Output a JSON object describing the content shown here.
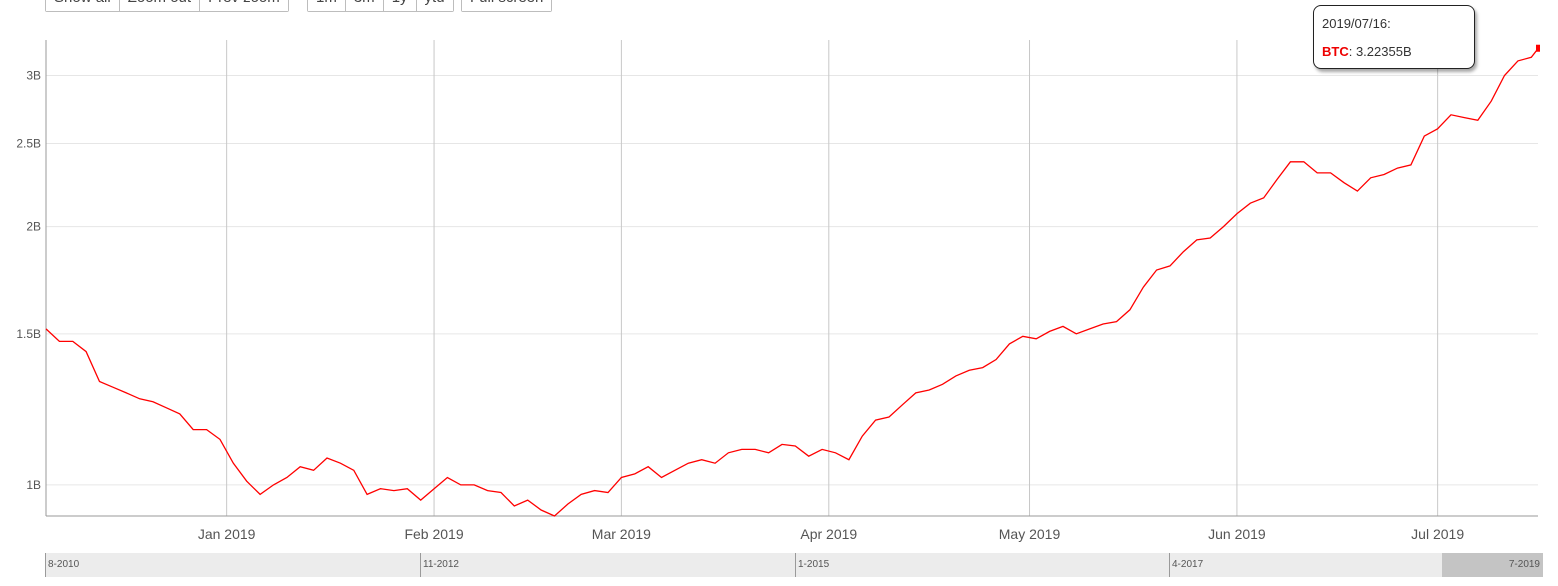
{
  "range_buttons": {
    "zoom": [
      "Show all",
      "Zoom out",
      "Prev zoom"
    ],
    "periods": [
      "1m",
      "3m",
      "1y",
      "ytd"
    ],
    "fullscreen": "Full screen"
  },
  "tooltip": {
    "date": "2019/07/16:",
    "series": "BTC",
    "separator": ": ",
    "value": "3.22355B"
  },
  "navigator": {
    "labels": [
      "8-2010",
      "11-2012",
      "1-2015",
      "4-2017"
    ],
    "end_label": "7-2019"
  },
  "colors": {
    "series": "#ff0000",
    "grid": "#e6e6e6",
    "vgrid": "#c8c8c8",
    "axis": "#999999"
  },
  "chart_data": {
    "type": "line",
    "title": "",
    "xlabel": "",
    "ylabel": "",
    "y_scale": "log",
    "ylim": [
      0.92,
      3.3
    ],
    "x_range": [
      "2018-12-05",
      "2019-07-16"
    ],
    "yticks": [
      {
        "value": 1.0,
        "label": "1B"
      },
      {
        "value": 1.5,
        "label": "1.5B"
      },
      {
        "value": 2.0,
        "label": "2B"
      },
      {
        "value": 2.5,
        "label": "2.5B"
      },
      {
        "value": 3.0,
        "label": "3B"
      }
    ],
    "xticks": [
      {
        "date": "2019-01-01",
        "label": "Jan 2019"
      },
      {
        "date": "2019-02-01",
        "label": "Feb 2019"
      },
      {
        "date": "2019-03-01",
        "label": "Mar 2019"
      },
      {
        "date": "2019-04-01",
        "label": "Apr 2019"
      },
      {
        "date": "2019-05-01",
        "label": "May 2019"
      },
      {
        "date": "2019-06-01",
        "label": "Jun 2019"
      },
      {
        "date": "2019-07-01",
        "label": "Jul 2019"
      }
    ],
    "series": [
      {
        "name": "BTC",
        "points": [
          [
            "2018-12-05",
            1.52
          ],
          [
            "2018-12-07",
            1.47
          ],
          [
            "2018-12-09",
            1.47
          ],
          [
            "2018-12-11",
            1.43
          ],
          [
            "2018-12-13",
            1.32
          ],
          [
            "2018-12-15",
            1.3
          ],
          [
            "2018-12-17",
            1.28
          ],
          [
            "2018-12-19",
            1.26
          ],
          [
            "2018-12-21",
            1.25
          ],
          [
            "2018-12-23",
            1.23
          ],
          [
            "2018-12-25",
            1.21
          ],
          [
            "2018-12-27",
            1.16
          ],
          [
            "2018-12-29",
            1.16
          ],
          [
            "2018-12-31",
            1.13
          ],
          [
            "2019-01-02",
            1.06
          ],
          [
            "2019-01-04",
            1.01
          ],
          [
            "2019-01-06",
            0.975
          ],
          [
            "2019-01-08",
            1.0
          ],
          [
            "2019-01-10",
            1.02
          ],
          [
            "2019-01-12",
            1.05
          ],
          [
            "2019-01-14",
            1.04
          ],
          [
            "2019-01-16",
            1.075
          ],
          [
            "2019-01-18",
            1.06
          ],
          [
            "2019-01-20",
            1.04
          ],
          [
            "2019-01-22",
            0.975
          ],
          [
            "2019-01-24",
            0.99
          ],
          [
            "2019-01-26",
            0.985
          ],
          [
            "2019-01-28",
            0.99
          ],
          [
            "2019-01-30",
            0.96
          ],
          [
            "2019-02-01",
            0.99
          ],
          [
            "2019-02-03",
            1.02
          ],
          [
            "2019-02-05",
            1.0
          ],
          [
            "2019-02-07",
            1.0
          ],
          [
            "2019-02-09",
            0.985
          ],
          [
            "2019-02-11",
            0.98
          ],
          [
            "2019-02-13",
            0.945
          ],
          [
            "2019-02-15",
            0.96
          ],
          [
            "2019-02-17",
            0.935
          ],
          [
            "2019-02-19",
            0.92
          ],
          [
            "2019-02-21",
            0.95
          ],
          [
            "2019-02-23",
            0.975
          ],
          [
            "2019-02-25",
            0.985
          ],
          [
            "2019-02-27",
            0.98
          ],
          [
            "2019-03-01",
            1.02
          ],
          [
            "2019-03-03",
            1.03
          ],
          [
            "2019-03-05",
            1.05
          ],
          [
            "2019-03-07",
            1.02
          ],
          [
            "2019-03-09",
            1.04
          ],
          [
            "2019-03-11",
            1.06
          ],
          [
            "2019-03-13",
            1.07
          ],
          [
            "2019-03-15",
            1.06
          ],
          [
            "2019-03-17",
            1.09
          ],
          [
            "2019-03-19",
            1.1
          ],
          [
            "2019-03-21",
            1.1
          ],
          [
            "2019-03-23",
            1.09
          ],
          [
            "2019-03-25",
            1.115
          ],
          [
            "2019-03-27",
            1.11
          ],
          [
            "2019-03-29",
            1.08
          ],
          [
            "2019-03-31",
            1.1
          ],
          [
            "2019-04-02",
            1.09
          ],
          [
            "2019-04-04",
            1.07
          ],
          [
            "2019-04-06",
            1.14
          ],
          [
            "2019-04-08",
            1.19
          ],
          [
            "2019-04-10",
            1.2
          ],
          [
            "2019-04-12",
            1.24
          ],
          [
            "2019-04-14",
            1.28
          ],
          [
            "2019-04-16",
            1.29
          ],
          [
            "2019-04-18",
            1.31
          ],
          [
            "2019-04-20",
            1.34
          ],
          [
            "2019-04-22",
            1.36
          ],
          [
            "2019-04-24",
            1.37
          ],
          [
            "2019-04-26",
            1.4
          ],
          [
            "2019-04-28",
            1.46
          ],
          [
            "2019-04-30",
            1.49
          ],
          [
            "2019-05-02",
            1.48
          ],
          [
            "2019-05-04",
            1.51
          ],
          [
            "2019-05-06",
            1.53
          ],
          [
            "2019-05-08",
            1.5
          ],
          [
            "2019-05-10",
            1.52
          ],
          [
            "2019-05-12",
            1.54
          ],
          [
            "2019-05-14",
            1.55
          ],
          [
            "2019-05-16",
            1.6
          ],
          [
            "2019-05-18",
            1.7
          ],
          [
            "2019-05-20",
            1.78
          ],
          [
            "2019-05-22",
            1.8
          ],
          [
            "2019-05-24",
            1.87
          ],
          [
            "2019-05-26",
            1.93
          ],
          [
            "2019-05-28",
            1.94
          ],
          [
            "2019-05-30",
            2.0
          ],
          [
            "2019-06-01",
            2.07
          ],
          [
            "2019-06-03",
            2.13
          ],
          [
            "2019-06-05",
            2.16
          ],
          [
            "2019-06-07",
            2.27
          ],
          [
            "2019-06-09",
            2.38
          ],
          [
            "2019-06-11",
            2.38
          ],
          [
            "2019-06-13",
            2.31
          ],
          [
            "2019-06-15",
            2.31
          ],
          [
            "2019-06-17",
            2.25
          ],
          [
            "2019-06-19",
            2.2
          ],
          [
            "2019-06-21",
            2.28
          ],
          [
            "2019-06-23",
            2.3
          ],
          [
            "2019-06-25",
            2.34
          ],
          [
            "2019-06-27",
            2.36
          ],
          [
            "2019-06-29",
            2.55
          ],
          [
            "2019-07-01",
            2.6
          ],
          [
            "2019-07-03",
            2.7
          ],
          [
            "2019-07-05",
            2.68
          ],
          [
            "2019-07-07",
            2.66
          ],
          [
            "2019-07-09",
            2.8
          ],
          [
            "2019-07-11",
            3.0
          ],
          [
            "2019-07-13",
            3.12
          ],
          [
            "2019-07-15",
            3.15
          ],
          [
            "2019-07-16",
            3.22355
          ]
        ]
      }
    ]
  }
}
